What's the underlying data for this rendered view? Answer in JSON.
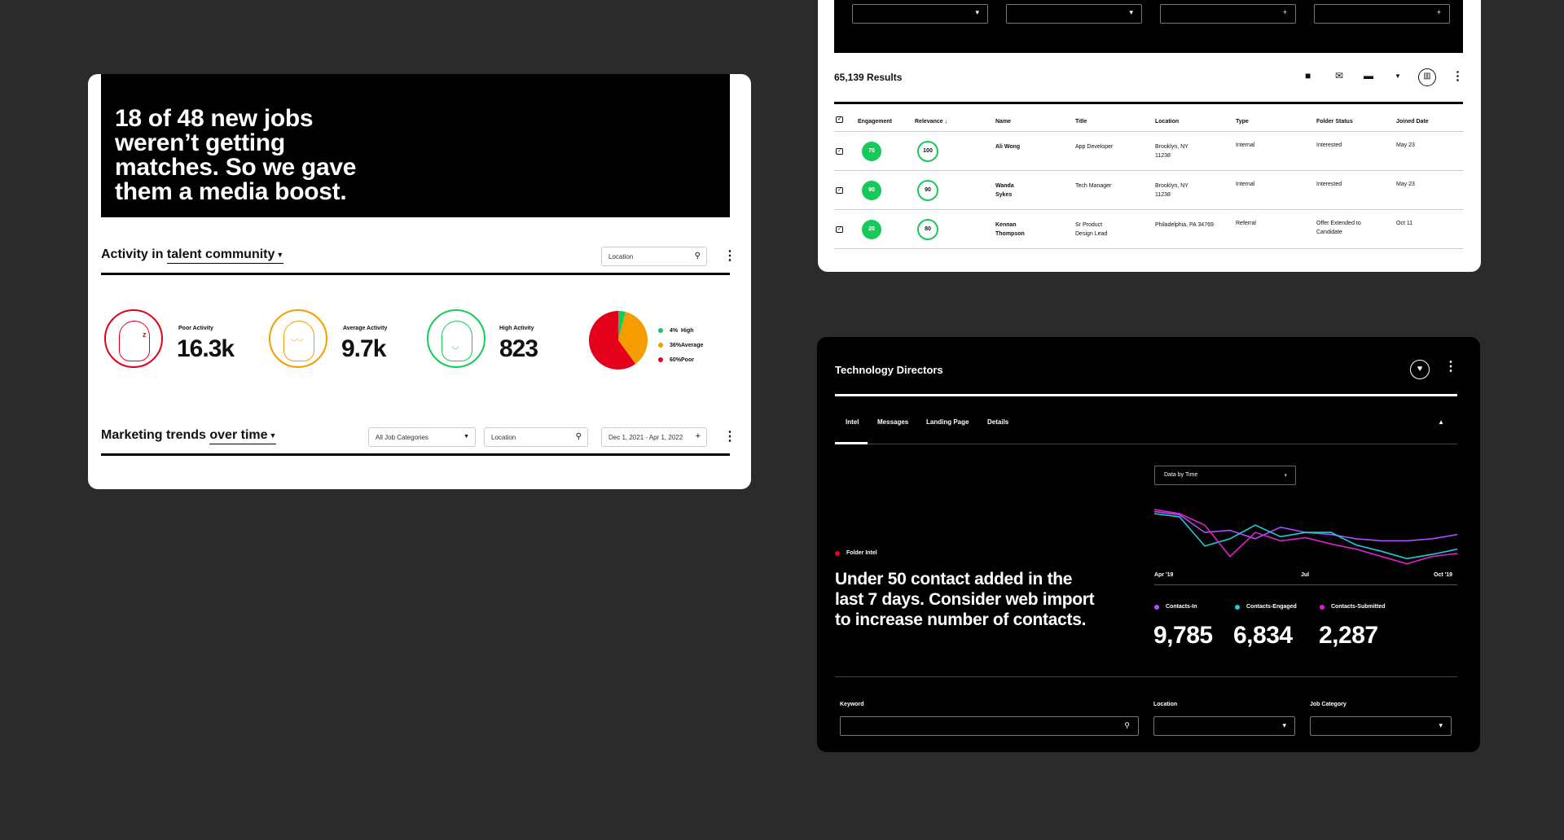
{
  "card1": {
    "hero_text": "18 of 48 new jobs weren’t getting matches. So we gave them a media boost.",
    "activity": {
      "title_prefix": "Activity in",
      "title_link": "talent community",
      "location_placeholder": "Location"
    },
    "stats": [
      {
        "label": "Poor Activity",
        "value": "16.3k",
        "color": "#e4001b"
      },
      {
        "label": "Average Activity",
        "value": "9.7k",
        "color": "#f59d00"
      },
      {
        "label": "High Activity",
        "value": "823",
        "color": "#17c85a"
      }
    ],
    "pie_legend": [
      {
        "pct": "4%",
        "label": "High",
        "color": "#17c85a"
      },
      {
        "pct": "36%",
        "label": "Average",
        "color": "#f59d00"
      },
      {
        "pct": "60%",
        "label": "Poor",
        "color": "#e4001b"
      }
    ],
    "trends": {
      "title_prefix": "Marketing trends",
      "title_link": "over time",
      "job_categories": "All Job Categories",
      "location_placeholder": "Location",
      "date_range": "Dec 1, 2021 - Apr 1, 2022"
    }
  },
  "card2": {
    "results": "65,139 Results",
    "headers": [
      "Engagement",
      "Relevance ↓",
      "Name",
      "Title",
      "Location",
      "Type",
      "Folder Status",
      "Joined Date"
    ],
    "rows": [
      {
        "engagement": "70",
        "relevance": "100",
        "name": "Ali Wong",
        "title": "App Developer",
        "location": "Brooklyn, NY 11238",
        "type": "Internal",
        "status": "Interested",
        "joined": "May 23"
      },
      {
        "engagement": "90",
        "relevance": "90",
        "name": "Wanda Sykes",
        "title": "Tech Manager",
        "location": "Brooklyn, NY 11238",
        "type": "Internal",
        "status": "Interested",
        "joined": "May 23"
      },
      {
        "engagement": "20",
        "relevance": "80",
        "name": "Kennan Thompson",
        "title": "Sr Product Design Lead",
        "location": "Philadelphia, PA 34769",
        "type": "Referral",
        "status": "Offer Extended to Candidate",
        "joined": "Oct 11"
      }
    ]
  },
  "card3": {
    "title": "Technology Directors",
    "tabs": [
      "Intel",
      "Messages",
      "Landing Page",
      "Details"
    ],
    "data_select": "Data by Time",
    "folder_intel": "Folder Intel",
    "insight": "Under 50 contact added in the last 7 days. Consider web import to increase number of contacts.",
    "x_ticks": [
      "Apr '19",
      "Jul",
      "Oct '19"
    ],
    "metrics": [
      {
        "label": "Contacts-In",
        "value": "9,785",
        "color": "#b04cff"
      },
      {
        "label": "Contacts-Engaged",
        "value": "6,834",
        "color": "#1ccfd6"
      },
      {
        "label": "Contacts-Submitted",
        "value": "2,287",
        "color": "#e020d0"
      }
    ],
    "filters": {
      "keyword": "Keyword",
      "location": "Location",
      "job_category": "Job Category"
    }
  },
  "chart_data": {
    "type": "line",
    "title": "",
    "x_ticks": [
      "Apr '19",
      "Jul",
      "Oct '19"
    ],
    "series": [
      {
        "name": "Contacts-In",
        "color": "#b04cff",
        "values": [
          78,
          75,
          58,
          60,
          52,
          63,
          58,
          56,
          52,
          50,
          50,
          52,
          56
        ]
      },
      {
        "name": "Contacts-Engaged",
        "color": "#1ccfd6",
        "values": [
          76,
          73,
          45,
          52,
          65,
          54,
          58,
          58,
          46,
          40,
          33,
          37,
          42
        ]
      },
      {
        "name": "Contacts-Submitted",
        "color": "#e020d0",
        "values": [
          80,
          76,
          65,
          35,
          58,
          50,
          53,
          47,
          42,
          35,
          28,
          35,
          38
        ]
      }
    ],
    "ylim": [
      20,
      90
    ]
  }
}
